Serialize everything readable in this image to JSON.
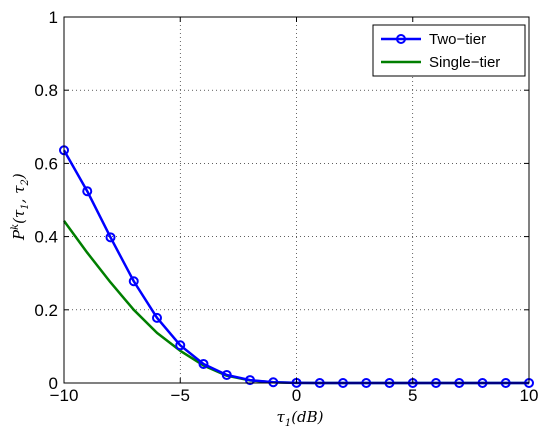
{
  "chart_data": {
    "type": "line",
    "title": "",
    "xlabel": {
      "base": "τ",
      "sub": "1",
      "tail": "(dB)"
    },
    "ylabel": {
      "base": "P",
      "sup": "k",
      "tail_open": "(τ",
      "sub1": "1",
      "mid": ", τ",
      "sub2": "2",
      "close": ")"
    },
    "xlim": [
      -10,
      10
    ],
    "ylim": [
      0,
      1
    ],
    "xticks": [
      -10,
      -5,
      0,
      5,
      10
    ],
    "xtick_labels": [
      "−10",
      "−5",
      "0",
      "5",
      "10"
    ],
    "yticks": [
      0,
      0.2,
      0.4,
      0.6,
      0.8,
      1
    ],
    "ytick_labels": [
      "0",
      "0.2",
      "0.4",
      "0.6",
      "0.8",
      "1"
    ],
    "grid": true,
    "legend_position": "top-right",
    "x": [
      -10,
      -9,
      -8,
      -7,
      -6,
      -5,
      -4,
      -3,
      -2,
      -1,
      0,
      1,
      2,
      3,
      4,
      5,
      6,
      7,
      8,
      9,
      10
    ],
    "series": [
      {
        "name": "Two−tier",
        "color": "#0000ff",
        "marker": "circle",
        "values": [
          0.636,
          0.524,
          0.398,
          0.278,
          0.178,
          0.103,
          0.052,
          0.022,
          0.008,
          0.002,
          0.0005,
          0,
          0,
          0,
          0,
          0,
          0,
          0,
          0,
          0,
          0
        ]
      },
      {
        "name": "Single−tier",
        "color": "#007f00",
        "marker": "none",
        "values": [
          0.443,
          0.356,
          0.275,
          0.2,
          0.137,
          0.088,
          0.048,
          0.02,
          0.007,
          0.002,
          0.0005,
          0,
          0,
          0,
          0,
          0,
          0,
          0,
          0,
          0,
          0
        ]
      }
    ]
  }
}
